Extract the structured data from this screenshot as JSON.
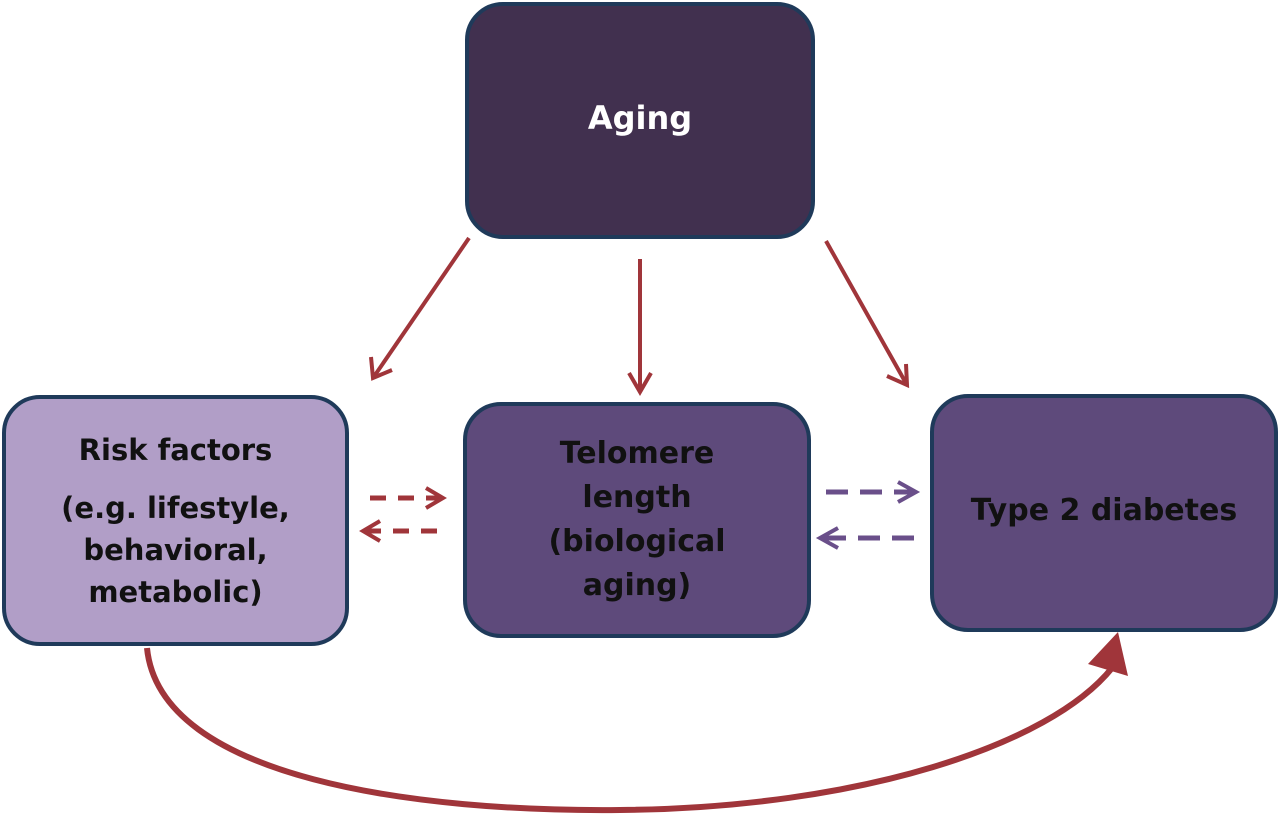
{
  "nodes": {
    "aging": {
      "label": "Aging"
    },
    "risk_factors": {
      "title": "Risk factors",
      "detail_lines": [
        "(e.g. lifestyle,",
        "behavioral,",
        "metabolic)"
      ]
    },
    "telomere": {
      "lines": [
        "Telomere",
        "length",
        "(biological",
        "aging)"
      ]
    },
    "type2_diabetes": {
      "label": "Type 2 diabetes"
    }
  },
  "colors": {
    "aging_fill": "#41304f",
    "risk_fill": "#b19ec7",
    "telomere_fill": "#5e4a7b",
    "diabetes_fill": "#5e4a7b",
    "node_border": "#1f3a5a",
    "arrow_red": "#a0353a",
    "arrow_purple": "#6a4f8a"
  },
  "edges": [
    {
      "from": "aging",
      "to": "risk_factors",
      "style": "solid",
      "color": "arrow_red"
    },
    {
      "from": "aging",
      "to": "telomere",
      "style": "solid",
      "color": "arrow_red"
    },
    {
      "from": "aging",
      "to": "type2_diabetes",
      "style": "solid",
      "color": "arrow_red"
    },
    {
      "from": "risk_factors",
      "to": "telomere",
      "style": "dashed",
      "color": "arrow_red"
    },
    {
      "from": "telomere",
      "to": "risk_factors",
      "style": "dashed",
      "color": "arrow_red"
    },
    {
      "from": "telomere",
      "to": "type2_diabetes",
      "style": "dashed",
      "color": "arrow_purple"
    },
    {
      "from": "type2_diabetes",
      "to": "telomere",
      "style": "dashed",
      "color": "arrow_purple"
    },
    {
      "from": "risk_factors",
      "to": "type2_diabetes",
      "style": "solid-curved",
      "color": "arrow_red"
    }
  ]
}
